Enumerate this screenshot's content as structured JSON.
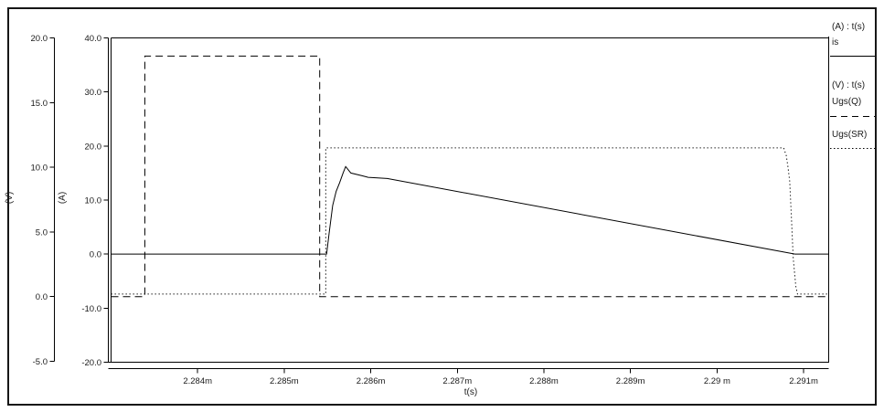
{
  "window": {
    "background": "#ffffff",
    "frame_color": "#161616",
    "line_color": "#000000",
    "text_color": "#1a1a1a"
  },
  "chart_data": {
    "type": "line",
    "title": "",
    "xlabel": "t(s)",
    "grid": false,
    "legend_position": "right",
    "x_range_ms": [
      2.283,
      2.29129
    ],
    "x_tick_values_ms": [
      2.284,
      2.285,
      2.286,
      2.287,
      2.288,
      2.289,
      2.29,
      2.291
    ],
    "x_tick_labels": [
      "2.284m",
      "2.285m",
      "2.286m",
      "2.287m",
      "2.288m",
      "2.289m",
      "2.29 m",
      "2.291m"
    ],
    "axes": {
      "v": {
        "label": "(V)",
        "range": [
          -5,
          20
        ],
        "tick_values": [
          20,
          15,
          10,
          5,
          0,
          -5
        ],
        "tick_labels": [
          "20.0",
          "15.0",
          "10.0",
          "5.0",
          "0.0",
          "-5.0"
        ]
      },
      "a": {
        "label": "(A)",
        "range": [
          -20,
          40
        ],
        "tick_values": [
          40,
          30,
          20,
          10,
          0,
          -10,
          -20
        ],
        "tick_labels": [
          "40.0",
          "30.0",
          "20.0",
          "10.0",
          "0.0",
          "-10.0",
          "-20.0"
        ]
      }
    },
    "series": [
      {
        "name": "is",
        "axis": "a",
        "style": "solid",
        "color": "#000000",
        "t_ms": [
          2.283,
          2.28549,
          2.28552,
          2.28556,
          2.2856,
          2.28564,
          2.28568,
          2.28571,
          2.28577,
          2.2859,
          2.28597,
          2.28619,
          2.2909,
          2.29129
        ],
        "values": [
          0,
          0,
          4.0,
          9.0,
          11.6,
          13.2,
          15.0,
          16.2,
          15.0,
          14.5,
          14.2,
          14.0,
          0,
          0
        ]
      },
      {
        "name": "Ugs(Q)",
        "axis": "v",
        "style": "dashed",
        "color": "#000000",
        "t_ms": [
          2.283,
          2.28339,
          2.28339,
          2.28541,
          2.28541,
          2.29129
        ],
        "values": [
          0,
          0,
          18.6,
          18.6,
          0,
          0
        ]
      },
      {
        "name": "Ugs(SR)",
        "axis": "v",
        "style": "dotted",
        "color": "#000000",
        "t_ms": [
          2.283,
          2.28548,
          2.28548,
          2.29077,
          2.2908,
          2.29082,
          2.29084,
          2.29086,
          2.29088,
          2.29091,
          2.29093,
          2.29129
        ],
        "values": [
          0.2,
          0.2,
          11.5,
          11.5,
          10.9,
          10.0,
          8.9,
          6.0,
          3.0,
          0.8,
          0.2,
          0.2
        ]
      }
    ]
  },
  "legend": {
    "group_a_title": "(A) : t(s)",
    "is_label": "is",
    "group_v_title": "(V) : t(s)",
    "ugs_q_label": "Ugs(Q)",
    "ugs_sr_label": "Ugs(SR)"
  }
}
